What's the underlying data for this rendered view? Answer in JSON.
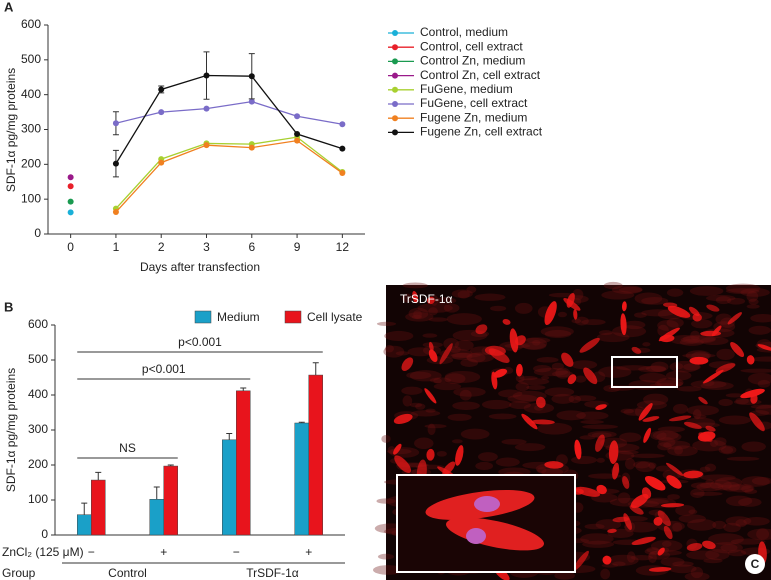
{
  "chart_data": [
    {
      "type": "line",
      "panel": "A",
      "x_label": "Days after transfection",
      "y_label": "SDF-1α pg/mg proteins",
      "categories": [
        "0",
        "1",
        "2",
        "3",
        "6",
        "9",
        "12"
      ],
      "ylim": [
        0,
        600
      ],
      "yticks": [
        0,
        100,
        200,
        300,
        400,
        500,
        600
      ],
      "series": [
        {
          "name": "Control, medium",
          "color": "#1ab0d8",
          "values": [
            62,
            null,
            null,
            null,
            null,
            null,
            null
          ]
        },
        {
          "name": "Control, cell extract",
          "color": "#e8202a",
          "values": [
            137,
            null,
            null,
            null,
            null,
            null,
            null
          ]
        },
        {
          "name": "Control Zn, medium",
          "color": "#1a9a50",
          "values": [
            93,
            null,
            null,
            null,
            null,
            null,
            null
          ]
        },
        {
          "name": "Control Zn, cell extract",
          "color": "#9a1a8a",
          "values": [
            163,
            null,
            null,
            null,
            null,
            null,
            null
          ]
        },
        {
          "name": "FuGene, medium",
          "color": "#a8d030",
          "values": [
            null,
            73,
            215,
            260,
            258,
            278,
            178
          ]
        },
        {
          "name": "FuGene, cell extract",
          "color": "#7a6cc8",
          "values": [
            null,
            318,
            350,
            360,
            380,
            338,
            315
          ],
          "errors": [
            null,
            33,
            null,
            null,
            null,
            null,
            null
          ]
        },
        {
          "name": "Fugene Zn, medium",
          "color": "#f08020",
          "values": [
            null,
            63,
            205,
            255,
            248,
            268,
            175
          ]
        },
        {
          "name": "Fugene Zn, cell extract",
          "color": "#111111",
          "values": [
            null,
            202,
            415,
            455,
            453,
            287,
            245
          ],
          "errors": [
            null,
            38,
            10,
            68,
            65,
            null,
            null
          ]
        }
      ]
    },
    {
      "type": "bar",
      "panel": "B",
      "y_label": "SDF-1α pg/mg proteins",
      "category_label": "ZnCl₂ (125 μM)",
      "categories": [
        "−",
        "+",
        "−",
        "+"
      ],
      "group_label": "Group",
      "groups": [
        "Control",
        "TrSDF-1α"
      ],
      "ylim": [
        0,
        600
      ],
      "yticks": [
        0,
        100,
        200,
        300,
        400,
        500,
        600
      ],
      "annotations": [
        "NS",
        "p<0.001",
        "p<0.001"
      ],
      "series": [
        {
          "name": "Medium",
          "color": "#1aa0c8",
          "values": [
            58,
            102,
            272,
            320
          ],
          "errors": [
            33,
            35,
            18,
            2
          ]
        },
        {
          "name": "Cell lysate",
          "color": "#e8141c",
          "values": [
            157,
            197,
            412,
            457
          ],
          "errors": [
            22,
            3,
            8,
            35
          ]
        }
      ]
    }
  ],
  "image_panel": {
    "title": "TrSDF-1α",
    "label": "C"
  }
}
